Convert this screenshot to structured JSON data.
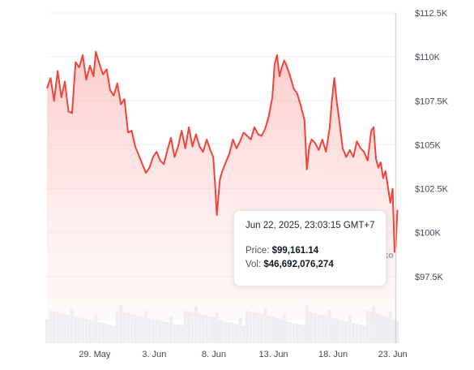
{
  "chart_data": {
    "type": "area",
    "y_axis": {
      "position": "right",
      "ticks": [
        "$97.5K",
        "$100K",
        "$102.5K",
        "$105K",
        "$107.5K",
        "$110K",
        "$112.5K"
      ],
      "tick_values": [
        97500,
        100000,
        102500,
        105000,
        107500,
        110000,
        112500
      ],
      "ylim": [
        95000,
        112500
      ]
    },
    "x_axis": {
      "ticks": [
        "29. May",
        "3. Jun",
        "8. Jun",
        "13. Jun",
        "18. Jun",
        "23. Jun"
      ],
      "tick_values": [
        5,
        10,
        15,
        20,
        25,
        30
      ],
      "xlim": [
        1.0,
        30.5
      ],
      "unit_note": "days from 24 May 2025"
    },
    "grid": true,
    "series": [
      {
        "color": "#f04438",
        "points": [
          [
            1.0,
            108200
          ],
          [
            1.3,
            108800
          ],
          [
            1.6,
            107500
          ],
          [
            1.9,
            109200
          ],
          [
            2.2,
            107700
          ],
          [
            2.5,
            108600
          ],
          [
            2.8,
            106900
          ],
          [
            3.1,
            106800
          ],
          [
            3.4,
            109700
          ],
          [
            3.7,
            109400
          ],
          [
            4.0,
            110100
          ],
          [
            4.3,
            108700
          ],
          [
            4.6,
            109500
          ],
          [
            4.9,
            108900
          ],
          [
            5.1,
            110300
          ],
          [
            5.4,
            109600
          ],
          [
            5.7,
            109000
          ],
          [
            6.0,
            109300
          ],
          [
            6.3,
            108100
          ],
          [
            6.6,
            107800
          ],
          [
            6.9,
            108500
          ],
          [
            7.2,
            107300
          ],
          [
            7.5,
            107600
          ],
          [
            7.8,
            105700
          ],
          [
            8.1,
            105800
          ],
          [
            8.4,
            104900
          ],
          [
            8.7,
            104400
          ],
          [
            9.0,
            103900
          ],
          [
            9.3,
            103400
          ],
          [
            9.6,
            103700
          ],
          [
            9.9,
            104300
          ],
          [
            10.2,
            104600
          ],
          [
            10.5,
            104100
          ],
          [
            10.8,
            103900
          ],
          [
            11.1,
            104700
          ],
          [
            11.4,
            105400
          ],
          [
            11.7,
            104300
          ],
          [
            12.0,
            104900
          ],
          [
            12.3,
            105800
          ],
          [
            12.6,
            104800
          ],
          [
            12.9,
            106000
          ],
          [
            13.2,
            104900
          ],
          [
            13.5,
            105600
          ],
          [
            13.8,
            104900
          ],
          [
            14.1,
            104600
          ],
          [
            14.4,
            105300
          ],
          [
            14.7,
            104700
          ],
          [
            14.95,
            104300
          ],
          [
            15.1,
            102800
          ],
          [
            15.25,
            101000
          ],
          [
            15.5,
            103000
          ],
          [
            15.7,
            103500
          ],
          [
            16.0,
            104000
          ],
          [
            16.3,
            104500
          ],
          [
            16.6,
            105300
          ],
          [
            16.9,
            104800
          ],
          [
            17.2,
            105200
          ],
          [
            17.5,
            105700
          ],
          [
            17.8,
            105500
          ],
          [
            18.1,
            105300
          ],
          [
            18.4,
            106000
          ],
          [
            18.7,
            105600
          ],
          [
            19.0,
            105500
          ],
          [
            19.3,
            105900
          ],
          [
            19.6,
            106600
          ],
          [
            19.9,
            107700
          ],
          [
            20.1,
            109600
          ],
          [
            20.3,
            110100
          ],
          [
            20.5,
            108900
          ],
          [
            20.7,
            109400
          ],
          [
            20.9,
            109800
          ],
          [
            21.1,
            109500
          ],
          [
            21.4,
            108900
          ],
          [
            21.7,
            108200
          ],
          [
            22.0,
            107900
          ],
          [
            22.3,
            107200
          ],
          [
            22.6,
            106400
          ],
          [
            22.8,
            103600
          ],
          [
            23.0,
            104900
          ],
          [
            23.2,
            105300
          ],
          [
            23.5,
            105100
          ],
          [
            23.8,
            104700
          ],
          [
            24.1,
            105300
          ],
          [
            24.4,
            104600
          ],
          [
            24.7,
            105900
          ],
          [
            24.9,
            107500
          ],
          [
            25.1,
            108800
          ],
          [
            25.3,
            107500
          ],
          [
            25.5,
            106500
          ],
          [
            25.8,
            104800
          ],
          [
            26.1,
            104300
          ],
          [
            26.4,
            104700
          ],
          [
            26.7,
            104300
          ],
          [
            27.0,
            105200
          ],
          [
            27.3,
            104800
          ],
          [
            27.6,
            104600
          ],
          [
            27.9,
            104100
          ],
          [
            28.2,
            105800
          ],
          [
            28.4,
            106000
          ],
          [
            28.6,
            104200
          ],
          [
            28.8,
            103700
          ],
          [
            29.0,
            104000
          ],
          [
            29.2,
            103100
          ],
          [
            29.4,
            103500
          ],
          [
            29.6,
            102600
          ],
          [
            29.8,
            101700
          ],
          [
            30.0,
            102500
          ],
          [
            30.15,
            98900
          ],
          [
            30.25,
            99161
          ],
          [
            30.4,
            101300
          ]
        ]
      }
    ],
    "volume_bars_visible": true,
    "tooltip": {
      "date": "Jun 22, 2025, 23:03:15 GMT+7",
      "price_label": "Price:",
      "price_value": "$99,161.14",
      "vol_label": "Vol:",
      "vol_value": "$46,692,076,274"
    },
    "watermark_text": "ko"
  }
}
